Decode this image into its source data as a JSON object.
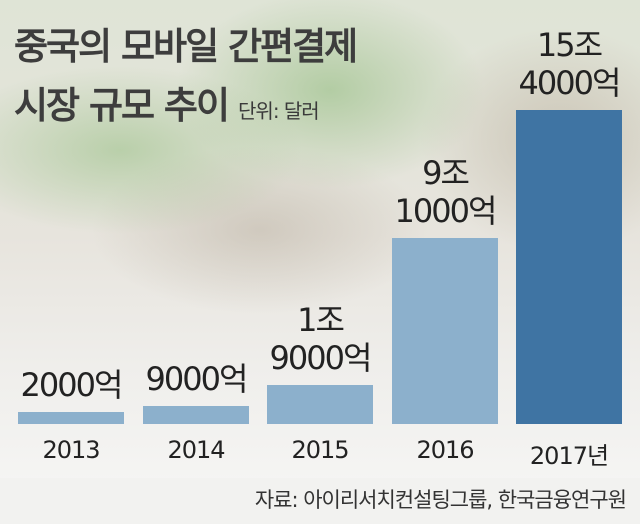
{
  "title_line1": "중국의 모바일 간편결제",
  "title_line2": "시장 규모 추이",
  "unit": "단위: 달러",
  "source": "자료: 아이리서치컨설팅그룹, 한국금융연구원",
  "colors": {
    "light_bar": "#8cb0cc",
    "dark_bar": "#3f74a3",
    "title": "#3d3d3d"
  },
  "chart_data": {
    "type": "bar",
    "title": "중국의 모바일 간편결제 시장 규모 추이",
    "unit_label": "단위: 달러",
    "categories": [
      "2013",
      "2014",
      "2015",
      "2016",
      "2017년"
    ],
    "values": [
      200000000000,
      900000000000,
      1900000000000,
      9100000000000,
      15400000000000
    ],
    "value_labels": [
      [
        "2000억"
      ],
      [
        "9000억"
      ],
      [
        "1조",
        "9000억"
      ],
      [
        "9조",
        "1000억"
      ],
      [
        "15조",
        "4000억"
      ]
    ],
    "highlight_index": 4,
    "ylim": [
      0,
      15400000000000
    ],
    "grid": false,
    "legend": "none"
  }
}
